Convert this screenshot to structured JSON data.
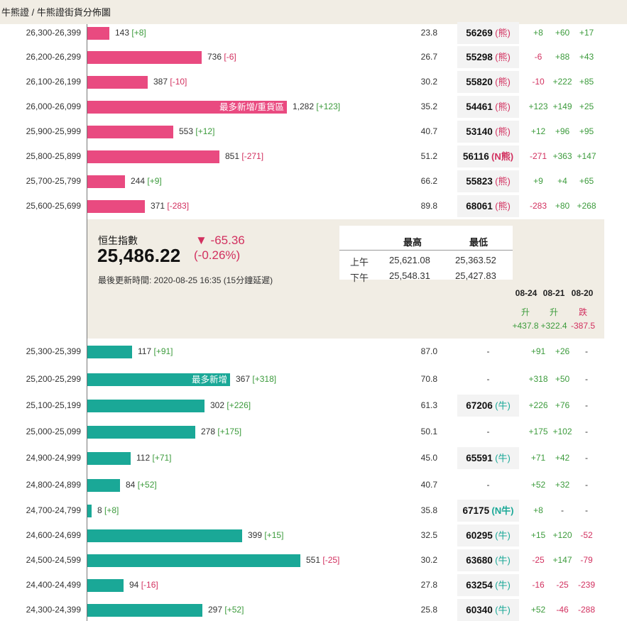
{
  "breadcrumb": "牛熊證 / 牛熊證街貨分佈圖",
  "bear_rows": [
    {
      "range": "26,300-26,399",
      "count": "143",
      "change": "[+8]",
      "bar_pct": 0.104,
      "bar_label": "",
      "pct": "23.8",
      "code": "56269",
      "type": "(熊)",
      "d1": "+8",
      "d2": "+60",
      "d3": "+17"
    },
    {
      "range": "26,200-26,299",
      "count": "736",
      "change": "[-6]",
      "bar_pct": 0.537,
      "bar_label": "",
      "pct": "26.7",
      "code": "55298",
      "type": "(熊)",
      "d1": "-6",
      "d2": "+88",
      "d3": "+43"
    },
    {
      "range": "26,100-26,199",
      "count": "387",
      "change": "[-10]",
      "bar_pct": 0.282,
      "bar_label": "",
      "pct": "30.2",
      "code": "55820",
      "type": "(熊)",
      "d1": "-10",
      "d2": "+222",
      "d3": "+85"
    },
    {
      "range": "26,000-26,099",
      "count": "1,282",
      "change": "[+123]",
      "bar_pct": 0.936,
      "bar_label": "最多新增/重貨區",
      "pct": "35.2",
      "code": "54461",
      "type": "(熊)",
      "d1": "+123",
      "d2": "+149",
      "d3": "+25"
    },
    {
      "range": "25,900-25,999",
      "count": "553",
      "change": "[+12]",
      "bar_pct": 0.403,
      "bar_label": "",
      "pct": "40.7",
      "code": "53140",
      "type": "(熊)",
      "d1": "+12",
      "d2": "+96",
      "d3": "+95"
    },
    {
      "range": "25,800-25,899",
      "count": "851",
      "change": "[-271]",
      "bar_pct": 0.621,
      "bar_label": "",
      "pct": "51.2",
      "code": "56116",
      "type": "(N熊)",
      "d1": "-271",
      "d2": "+363",
      "d3": "+147"
    },
    {
      "range": "25,700-25,799",
      "count": "244",
      "change": "[+9]",
      "bar_pct": 0.178,
      "bar_label": "",
      "pct": "66.2",
      "code": "55823",
      "type": "(熊)",
      "d1": "+9",
      "d2": "+4",
      "d3": "+65"
    },
    {
      "range": "25,600-25,699",
      "count": "371",
      "change": "[-283]",
      "bar_pct": 0.27,
      "bar_label": "",
      "pct": "89.8",
      "code": "68061",
      "type": "(熊)",
      "d1": "-283",
      "d2": "+80",
      "d3": "+268"
    }
  ],
  "index": {
    "title": "恒生指數",
    "value": "25,486.22",
    "change": "▼ -65.36",
    "change_pct": "(-0.26%)",
    "updated": "最後更新時間: 2020-08-25 16:35 (15分鐘延遲)",
    "hl_headers": [
      "最高",
      "最低"
    ],
    "hl_rows": [
      {
        "label": "上午",
        "high": "25,621.08",
        "low": "25,363.52"
      },
      {
        "label": "下午",
        "high": "25,548.31",
        "low": "25,427.83"
      }
    ],
    "dates": [
      "08-24",
      "08-21",
      "08-20"
    ],
    "directions": [
      "升",
      "升",
      "跌"
    ],
    "date_changes": [
      "+437.8",
      "+322.4",
      "-387.5"
    ]
  },
  "bull_rows": [
    {
      "range": "25,300-25,399",
      "count": "117",
      "change": "[+91]",
      "bar_pct": 0.21,
      "bar_label": "",
      "pct": "87.0",
      "code": "",
      "type": "",
      "d1": "+91",
      "d2": "+26",
      "d3": "-"
    },
    {
      "range": "25,200-25,299",
      "count": "367",
      "change": "[+318]",
      "bar_pct": 0.67,
      "bar_label": "最多新增",
      "pct": "70.8",
      "code": "",
      "type": "",
      "d1": "+318",
      "d2": "+50",
      "d3": "-"
    },
    {
      "range": "25,100-25,199",
      "count": "302",
      "change": "[+226]",
      "bar_pct": 0.55,
      "bar_label": "",
      "pct": "61.3",
      "code": "67206",
      "type": "(牛)",
      "d1": "+226",
      "d2": "+76",
      "d3": "-"
    },
    {
      "range": "25,000-25,099",
      "count": "278",
      "change": "[+175]",
      "bar_pct": 0.505,
      "bar_label": "",
      "pct": "50.1",
      "code": "",
      "type": "",
      "d1": "+175",
      "d2": "+102",
      "d3": "-"
    },
    {
      "range": "24,900-24,999",
      "count": "112",
      "change": "[+71]",
      "bar_pct": 0.204,
      "bar_label": "",
      "pct": "45.0",
      "code": "65591",
      "type": "(牛)",
      "d1": "+71",
      "d2": "+42",
      "d3": "-"
    },
    {
      "range": "24,800-24,899",
      "count": "84",
      "change": "[+52]",
      "bar_pct": 0.153,
      "bar_label": "",
      "pct": "40.7",
      "code": "",
      "type": "",
      "d1": "+52",
      "d2": "+32",
      "d3": "-"
    },
    {
      "range": "24,700-24,799",
      "count": "8",
      "change": "[+8]",
      "bar_pct": 0.02,
      "bar_label": "",
      "pct": "35.8",
      "code": "67175",
      "type": "(N牛)",
      "d1": "+8",
      "d2": "-",
      "d3": "-"
    },
    {
      "range": "24,600-24,699",
      "count": "399",
      "change": "[+15]",
      "bar_pct": 0.725,
      "bar_label": "",
      "pct": "32.5",
      "code": "60295",
      "type": "(牛)",
      "d1": "+15",
      "d2": "+120",
      "d3": "-52"
    },
    {
      "range": "24,500-24,599",
      "count": "551",
      "change": "[-25]",
      "bar_pct": 1.0,
      "bar_label": "",
      "pct": "30.2",
      "code": "63680",
      "type": "(牛)",
      "d1": "-25",
      "d2": "+147",
      "d3": "-79"
    },
    {
      "range": "24,400-24,499",
      "count": "94",
      "change": "[-16]",
      "bar_pct": 0.171,
      "bar_label": "",
      "pct": "27.8",
      "code": "63254",
      "type": "(牛)",
      "d1": "-16",
      "d2": "-25",
      "d3": "-239"
    },
    {
      "range": "24,300-24,399",
      "count": "297",
      "change": "[+52]",
      "bar_pct": 0.54,
      "bar_label": "",
      "pct": "25.8",
      "code": "60340",
      "type": "(牛)",
      "d1": "+52",
      "d2": "-46",
      "d3": "-288"
    }
  ],
  "colors": {
    "bear": "#e94a80",
    "bull": "#1aa897",
    "positive": "#3c9b3c",
    "negative": "#d2305f",
    "panel": "#f1ede4"
  }
}
